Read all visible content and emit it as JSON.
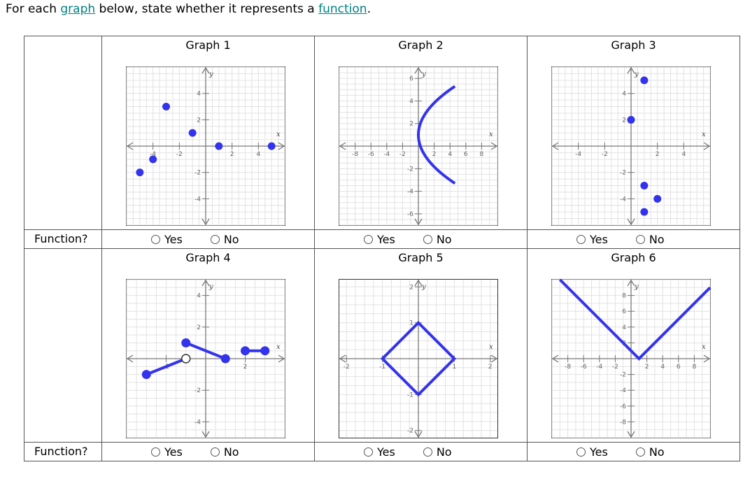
{
  "prompt": {
    "before": "For each ",
    "link1": "graph",
    "middle": " below, state whether it represents a ",
    "link2": "function",
    "after": "."
  },
  "row_label": "Function?",
  "options": {
    "yes": "Yes",
    "no": "No"
  },
  "colors": {
    "curve": "#3333ee",
    "link": "#008080"
  },
  "graphs": [
    {
      "title": "Graph 1",
      "xrange": [
        -6,
        6
      ],
      "yrange": [
        -6,
        6
      ],
      "xticks": [
        "-4",
        "-2",
        "2",
        "4"
      ],
      "xtickvals": [
        -4,
        -2,
        2,
        4
      ],
      "yticks": [
        "4",
        "2",
        "-2",
        "-4"
      ],
      "ytickvals": [
        4,
        2,
        -2,
        -4
      ],
      "points": [
        [
          -5,
          -2
        ],
        [
          -4,
          -1
        ],
        [
          -3,
          3
        ],
        [
          -1,
          1
        ],
        [
          1,
          0
        ],
        [
          5,
          0
        ]
      ]
    },
    {
      "title": "Graph 2",
      "xrange": [
        -10,
        10
      ],
      "yrange": [
        -7,
        7
      ],
      "xticks": [
        "-8",
        "-6",
        "-4",
        "-2",
        "2",
        "4",
        "6",
        "8"
      ],
      "xtickvals": [
        -8,
        -6,
        -4,
        -2,
        2,
        4,
        6,
        8
      ],
      "yticks": [
        "6",
        "4",
        "2",
        "-2",
        "-4",
        "-6"
      ],
      "ytickvals": [
        6,
        4,
        2,
        -2,
        -4,
        -6
      ],
      "curve": "sideways-parabola"
    },
    {
      "title": "Graph 3",
      "xrange": [
        -6,
        6
      ],
      "yrange": [
        -6,
        6
      ],
      "xticks": [
        "-4",
        "-2",
        "2",
        "4"
      ],
      "xtickvals": [
        -4,
        -2,
        2,
        4
      ],
      "yticks": [
        "4",
        "2",
        "-2",
        "-4"
      ],
      "ytickvals": [
        4,
        2,
        -2,
        -4
      ],
      "points": [
        [
          1,
          5
        ],
        [
          0,
          2
        ],
        [
          1,
          -3
        ],
        [
          2,
          -4
        ],
        [
          1,
          -5
        ]
      ]
    },
    {
      "title": "Graph 4",
      "xrange": [
        -4,
        4
      ],
      "yrange": [
        -5,
        5
      ],
      "xticks": [
        "-2",
        "2"
      ],
      "xtickvals": [
        -2,
        2
      ],
      "yticks": [
        "4",
        "2",
        "-2",
        "-4"
      ],
      "ytickvals": [
        4,
        2,
        -2,
        -4
      ],
      "segments": [
        [
          [
            -3,
            -1
          ],
          [
            -1,
            0
          ]
        ],
        [
          [
            -1,
            1
          ],
          [
            1,
            0
          ]
        ],
        [
          [
            2,
            0.5
          ],
          [
            3,
            0.5
          ]
        ]
      ],
      "closed": [
        [
          -3,
          -1
        ],
        [
          -1,
          1
        ],
        [
          1,
          0
        ],
        [
          2,
          0.5
        ],
        [
          3,
          0.5
        ]
      ],
      "open": [
        [
          -1,
          0
        ]
      ]
    },
    {
      "title": "Graph 5",
      "xrange": [
        -2.2,
        2.2
      ],
      "yrange": [
        -2.2,
        2.2
      ],
      "xticks": [
        "-2",
        "-1",
        "1",
        "2"
      ],
      "xtickvals": [
        -2,
        -1,
        1,
        2
      ],
      "yticks": [
        "2",
        "1",
        "-1",
        "-2"
      ],
      "ytickvals": [
        2,
        1,
        -1,
        -2
      ],
      "polygon": [
        [
          0,
          1
        ],
        [
          1,
          0
        ],
        [
          0,
          -1
        ],
        [
          -1,
          0
        ]
      ]
    },
    {
      "title": "Graph 6",
      "xrange": [
        -10,
        10
      ],
      "yrange": [
        -10,
        10
      ],
      "xticks": [
        "-8",
        "-6",
        "-4",
        "-2",
        "2",
        "4",
        "6",
        "8"
      ],
      "xtickvals": [
        -8,
        -6,
        -4,
        -2,
        2,
        4,
        6,
        8
      ],
      "yticks": [
        "8",
        "6",
        "4",
        "2",
        "-2",
        "-4",
        "-6",
        "-8"
      ],
      "ytickvals": [
        8,
        6,
        4,
        2,
        -2,
        -4,
        -6,
        -8
      ],
      "polyline": [
        [
          -9,
          10
        ],
        [
          1,
          0
        ],
        [
          10,
          9
        ]
      ]
    }
  ]
}
